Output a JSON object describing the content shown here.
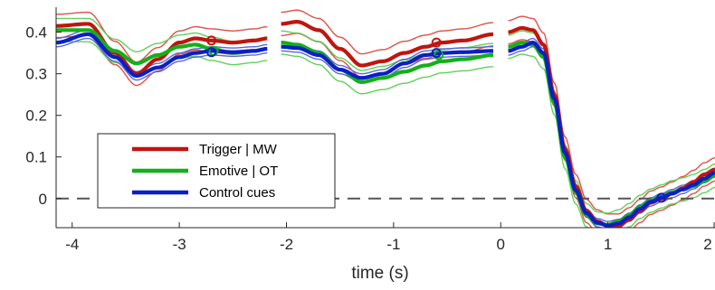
{
  "chart_data": {
    "type": "line",
    "title": "",
    "xlabel": "time (s)",
    "ylabel": "",
    "xlim": [
      -4.15,
      2.0
    ],
    "ylim": [
      -0.07,
      0.46
    ],
    "xticks": [
      -4,
      -3,
      -2,
      -1,
      0,
      1,
      2
    ],
    "xtick_labels": [
      "-4",
      "-3",
      "-2",
      "-1",
      "0",
      "1",
      "2"
    ],
    "yticks": [
      0,
      0.1,
      0.2,
      0.3,
      0.4
    ],
    "ytick_labels": [
      "0",
      "0.1",
      "0.2",
      "0.3",
      "0.4"
    ],
    "grid": false,
    "legend_position": "lower-left",
    "zero_line": {
      "y": 0,
      "style": "dashed",
      "color": "#555555"
    },
    "segments": [
      [
        -4.15,
        -2.18
      ],
      [
        -2.05,
        -0.07
      ],
      [
        0.07,
        2.0
      ]
    ],
    "series": [
      {
        "name": "Trigger | MW",
        "color": "#c0150f",
        "band_color": "#e05046",
        "band_halfwidth": 0.028,
        "points": [
          [
            -4.15,
            0.415
          ],
          [
            -3.85,
            0.42
          ],
          [
            -3.6,
            0.35
          ],
          [
            -3.4,
            0.3
          ],
          [
            -3.2,
            0.335
          ],
          [
            -3.0,
            0.375
          ],
          [
            -2.85,
            0.385
          ],
          [
            -2.7,
            0.38
          ],
          [
            -2.5,
            0.375
          ],
          [
            -2.3,
            0.38
          ],
          [
            -2.18,
            0.385
          ],
          [
            -2.05,
            0.42
          ],
          [
            -1.9,
            0.425
          ],
          [
            -1.7,
            0.405
          ],
          [
            -1.5,
            0.36
          ],
          [
            -1.3,
            0.32
          ],
          [
            -1.1,
            0.33
          ],
          [
            -0.9,
            0.35
          ],
          [
            -0.7,
            0.365
          ],
          [
            -0.55,
            0.375
          ],
          [
            -0.35,
            0.38
          ],
          [
            -0.07,
            0.395
          ],
          [
            0.07,
            0.4
          ],
          [
            0.2,
            0.41
          ],
          [
            0.3,
            0.405
          ],
          [
            0.4,
            0.37
          ],
          [
            0.5,
            0.25
          ],
          [
            0.6,
            0.12
          ],
          [
            0.7,
            0.03
          ],
          [
            0.8,
            -0.03
          ],
          [
            0.9,
            -0.055
          ],
          [
            1.0,
            -0.065
          ],
          [
            1.1,
            -0.065
          ],
          [
            1.2,
            -0.05
          ],
          [
            1.3,
            -0.03
          ],
          [
            1.4,
            -0.01
          ],
          [
            1.5,
            0.0
          ],
          [
            1.6,
            0.012
          ],
          [
            1.7,
            0.025
          ],
          [
            1.8,
            0.04
          ],
          [
            1.9,
            0.058
          ],
          [
            2.0,
            0.07
          ]
        ],
        "markers": [
          [
            -2.7,
            0.38
          ],
          [
            -0.6,
            0.375
          ]
        ]
      },
      {
        "name": "Emotive | OT",
        "color": "#13b01a",
        "band_color": "#5fd25a",
        "band_halfwidth": 0.028,
        "points": [
          [
            -4.15,
            0.405
          ],
          [
            -3.85,
            0.405
          ],
          [
            -3.6,
            0.355
          ],
          [
            -3.4,
            0.325
          ],
          [
            -3.2,
            0.345
          ],
          [
            -3.0,
            0.365
          ],
          [
            -2.85,
            0.37
          ],
          [
            -2.7,
            0.36
          ],
          [
            -2.5,
            0.35
          ],
          [
            -2.3,
            0.355
          ],
          [
            -2.18,
            0.36
          ],
          [
            -2.05,
            0.375
          ],
          [
            -1.9,
            0.37
          ],
          [
            -1.7,
            0.35
          ],
          [
            -1.5,
            0.31
          ],
          [
            -1.3,
            0.28
          ],
          [
            -1.1,
            0.29
          ],
          [
            -0.9,
            0.305
          ],
          [
            -0.7,
            0.32
          ],
          [
            -0.55,
            0.33
          ],
          [
            -0.35,
            0.335
          ],
          [
            -0.07,
            0.345
          ],
          [
            0.07,
            0.365
          ],
          [
            0.2,
            0.375
          ],
          [
            0.3,
            0.37
          ],
          [
            0.4,
            0.34
          ],
          [
            0.5,
            0.23
          ],
          [
            0.6,
            0.1
          ],
          [
            0.7,
            0.015
          ],
          [
            0.8,
            -0.04
          ],
          [
            0.9,
            -0.06
          ],
          [
            1.0,
            -0.063
          ],
          [
            1.1,
            -0.055
          ],
          [
            1.2,
            -0.04
          ],
          [
            1.3,
            -0.02
          ],
          [
            1.4,
            -0.005
          ],
          [
            1.5,
            0.005
          ],
          [
            1.6,
            0.015
          ],
          [
            1.7,
            0.022
          ],
          [
            1.8,
            0.03
          ],
          [
            1.9,
            0.042
          ],
          [
            2.0,
            0.055
          ]
        ],
        "markers": [
          [
            -2.68,
            0.355
          ],
          [
            -0.58,
            0.345
          ]
        ]
      },
      {
        "name": "Control cues",
        "color": "#0a1fc4",
        "band_color": "#5a68d8",
        "band_halfwidth": 0.01,
        "points": [
          [
            -4.15,
            0.375
          ],
          [
            -3.85,
            0.395
          ],
          [
            -3.6,
            0.34
          ],
          [
            -3.4,
            0.295
          ],
          [
            -3.2,
            0.315
          ],
          [
            -3.0,
            0.34
          ],
          [
            -2.85,
            0.35
          ],
          [
            -2.7,
            0.355
          ],
          [
            -2.5,
            0.352
          ],
          [
            -2.3,
            0.355
          ],
          [
            -2.18,
            0.36
          ],
          [
            -2.05,
            0.365
          ],
          [
            -1.9,
            0.362
          ],
          [
            -1.7,
            0.345
          ],
          [
            -1.5,
            0.31
          ],
          [
            -1.3,
            0.29
          ],
          [
            -1.1,
            0.3
          ],
          [
            -0.9,
            0.325
          ],
          [
            -0.7,
            0.345
          ],
          [
            -0.55,
            0.35
          ],
          [
            -0.35,
            0.352
          ],
          [
            -0.07,
            0.355
          ],
          [
            0.07,
            0.355
          ],
          [
            0.2,
            0.365
          ],
          [
            0.3,
            0.375
          ],
          [
            0.4,
            0.35
          ],
          [
            0.5,
            0.24
          ],
          [
            0.6,
            0.11
          ],
          [
            0.7,
            0.02
          ],
          [
            0.8,
            -0.035
          ],
          [
            0.9,
            -0.058
          ],
          [
            1.0,
            -0.065
          ],
          [
            1.1,
            -0.06
          ],
          [
            1.2,
            -0.045
          ],
          [
            1.3,
            -0.025
          ],
          [
            1.4,
            -0.008
          ],
          [
            1.5,
            0.002
          ],
          [
            1.6,
            0.012
          ],
          [
            1.7,
            0.022
          ],
          [
            1.8,
            0.033
          ],
          [
            1.9,
            0.048
          ],
          [
            2.0,
            0.062
          ]
        ],
        "markers": [
          [
            -2.7,
            0.352
          ],
          [
            -0.6,
            0.35
          ],
          [
            1.5,
            0.002
          ]
        ]
      }
    ]
  }
}
